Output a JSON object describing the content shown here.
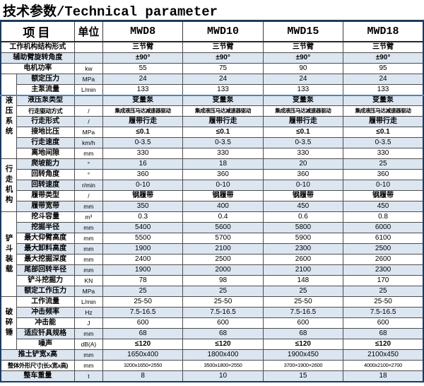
{
  "title": "技术参数/Technical parameter",
  "header": {
    "item": "项目",
    "unit": "单位",
    "models": [
      "MWD8",
      "MWD10",
      "MWD15",
      "MWD18"
    ]
  },
  "accent_colors": {
    "band_blue": "#dce6f1",
    "freeze_line_blue": "#4f81bd",
    "outer_border_navy": "#1c3a5e"
  },
  "rows": [
    {
      "label": "工作机构结构形式",
      "unit": "",
      "values": [
        "三节臂",
        "三节臂",
        "三节臂",
        "三节臂"
      ],
      "fullLeft": true
    },
    {
      "label": "辅助臂旋转角度",
      "unit": "",
      "values": [
        "±90°",
        "±90°",
        "±90°",
        "±90°"
      ],
      "fullLeft": true
    },
    {
      "label": "电机功率",
      "unit": "kw",
      "values": [
        "55",
        "75",
        "90",
        "95"
      ],
      "fullLeft": true
    },
    {
      "label": "额定压力",
      "unit": "MPa",
      "values": [
        "24",
        "24",
        "24",
        "24"
      ],
      "group": "液压系统",
      "groupSpan": 8
    },
    {
      "label": "主泵流量",
      "unit": "L/min",
      "values": [
        "133",
        "133",
        "133",
        "133"
      ]
    },
    {
      "label": "液压泵类型",
      "unit": "",
      "values": [
        "变量泵",
        "变量泵",
        "变量泵",
        "变量泵"
      ]
    },
    {
      "label": "行走驱动方式",
      "unit": "/",
      "values": [
        "集成液压马达减速器驱动",
        "集成液压马达减速器驱动",
        "集成液压马达减速器驱动",
        "集成液压马达减速器驱动"
      ],
      "small": true
    },
    {
      "label": "行走形式",
      "unit": "/",
      "values": [
        "履带行走",
        "履带行走",
        "履带行走",
        "履带行走"
      ]
    },
    {
      "label": "接地比压",
      "unit": "MPa",
      "values": [
        "≤0.1",
        "≤0.1",
        "≤0.1",
        "≤0.1"
      ]
    },
    {
      "label": "行走速度",
      "unit": "km/h",
      "values": [
        "0-3.5",
        "0-3.5",
        "0-3.5",
        "0-3.5"
      ]
    },
    {
      "label": "离地间隙",
      "unit": "mm",
      "values": [
        "330",
        "330",
        "330",
        "330"
      ]
    },
    {
      "label": "爬坡能力",
      "unit": "°",
      "values": [
        "16",
        "18",
        "20",
        "25"
      ],
      "group": "行走机构",
      "groupSpan": 5
    },
    {
      "label": "回转角度",
      "unit": "°",
      "values": [
        "360",
        "360",
        "360",
        "360"
      ]
    },
    {
      "label": "回转速度",
      "unit": "r/min",
      "values": [
        "0-10",
        "0-10",
        "0-10",
        "0-10"
      ]
    },
    {
      "label": "履带类型",
      "unit": "/",
      "values": [
        "钢履带",
        "钢履带",
        "钢履带",
        "钢履带"
      ]
    },
    {
      "label": "履带宽带",
      "unit": "mm",
      "values": [
        "350",
        "400",
        "450",
        "450"
      ]
    },
    {
      "label": "挖斗容量",
      "unit": "m³",
      "values": [
        "0.3",
        "0.4",
        "0.6",
        "0.8"
      ],
      "group": "铲斗装载",
      "groupSpan": 8
    },
    {
      "label": "挖掘半径",
      "unit": "mm",
      "values": [
        "5400",
        "5600",
        "5800",
        "6000"
      ]
    },
    {
      "label": "最大仰臂高度",
      "unit": "mm",
      "values": [
        "5500",
        "5700",
        "5900",
        "6100"
      ]
    },
    {
      "label": "最大卸料高度",
      "unit": "mm",
      "values": [
        "1900",
        "2100",
        "2300",
        "2500"
      ]
    },
    {
      "label": "最大挖掘深度",
      "unit": "mm",
      "values": [
        "2400",
        "2500",
        "2600",
        "2600"
      ]
    },
    {
      "label": "尾部回转半径",
      "unit": "mm",
      "values": [
        "1900",
        "2000",
        "2100",
        "2300"
      ]
    },
    {
      "label": "铲斗挖掘力",
      "unit": "KN",
      "values": [
        "78",
        "98",
        "148",
        "170"
      ]
    },
    {
      "label": "额定工作压力",
      "unit": "MPa",
      "values": [
        "25",
        "25",
        "25",
        "25"
      ]
    },
    {
      "label": "工作流量",
      "unit": "L/min",
      "values": [
        "25-50",
        "25-50",
        "25-50",
        "25-50"
      ],
      "group": "破碎锤",
      "groupSpan": 5
    },
    {
      "label": "冲击频率",
      "unit": "Hz",
      "values": [
        "7.5-16.5",
        "7.5-16.5",
        "7.5-16.5",
        "7.5-16.5"
      ]
    },
    {
      "label": "冲击能",
      "unit": "J",
      "values": [
        "600",
        "600",
        "600",
        "600"
      ]
    },
    {
      "label": "适应钎具规格",
      "unit": "mm",
      "values": [
        "68",
        "68",
        "68",
        "68"
      ]
    },
    {
      "label": "噪声",
      "unit": "dB(A)",
      "values": [
        "≤120",
        "≤120",
        "≤120",
        "≤120"
      ]
    },
    {
      "label": "推土铲宽x高",
      "unit": "mm",
      "values": [
        "1650x400",
        "1800x400",
        "1900x450",
        "2100x450"
      ],
      "fullLeft": true
    },
    {
      "label": "整体外形尺寸(长x宽x高)",
      "unit": "mm",
      "values": [
        "3200x1650×2550",
        "3500x1800×2550",
        "3700×1900×2600",
        "4000x2100×2700"
      ],
      "fullLeft": true,
      "small": true
    },
    {
      "label": "整车重量",
      "unit": "t",
      "values": [
        "8",
        "10",
        "15",
        "18"
      ],
      "fullLeft": true
    }
  ]
}
